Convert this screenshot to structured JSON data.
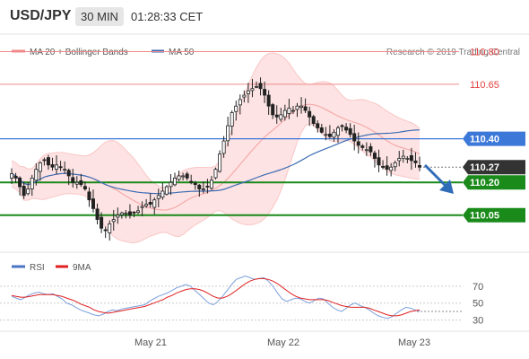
{
  "header": {
    "symbol": "USD/JPY",
    "timeframe": "30 MIN",
    "time": "01:28:33 CET"
  },
  "legend": {
    "bollinger": "MA 20 + Bollinger Bands",
    "ma50": "MA 50",
    "copyright": "Research © 2019 Trading Central"
  },
  "levels": [
    {
      "value": "110.80",
      "kind": "resistance"
    },
    {
      "value": "110.65",
      "kind": "resistance"
    },
    {
      "value": "110.40",
      "kind": "pivot"
    },
    {
      "value": "110.27",
      "kind": "last"
    },
    {
      "value": "110.20",
      "kind": "support"
    },
    {
      "value": "110.05",
      "kind": "support"
    }
  ],
  "rsi_legend": {
    "rsi": "RSI",
    "ma": "9MA"
  },
  "chart_data": {
    "type": "candlestick",
    "price_range": [
      109.88,
      110.88
    ],
    "rsi_range": [
      20,
      90
    ],
    "rsi_ticks": [
      "70",
      "50",
      "30"
    ],
    "x_labels": [
      "May 21",
      "May 22",
      "May 23"
    ],
    "close_series": [
      110.24,
      110.22,
      110.18,
      110.14,
      110.17,
      110.22,
      110.26,
      110.29,
      110.3,
      110.28,
      110.27,
      110.28,
      110.27,
      110.26,
      110.23,
      110.2,
      110.2,
      110.19,
      110.17,
      110.12,
      110.08,
      110.03,
      109.99,
      109.98,
      110.01,
      110.03,
      110.05,
      110.06,
      110.06,
      110.05,
      110.06,
      110.07,
      110.09,
      110.1,
      110.1,
      110.12,
      110.14,
      110.16,
      110.18,
      110.2,
      110.22,
      110.23,
      110.23,
      110.22,
      110.2,
      110.19,
      110.17,
      110.17,
      110.18,
      110.21,
      110.26,
      110.33,
      110.39,
      110.46,
      110.52,
      110.55,
      110.58,
      110.6,
      110.62,
      110.63,
      110.64,
      110.63,
      110.6,
      110.55,
      110.51,
      110.5,
      110.51,
      110.53,
      110.54,
      110.53,
      110.55,
      110.55,
      110.53,
      110.5,
      110.47,
      110.45,
      110.43,
      110.42,
      110.41,
      110.43,
      110.45,
      110.46,
      110.44,
      110.42,
      110.39,
      110.37,
      110.36,
      110.35,
      110.34,
      110.31,
      110.28,
      110.27,
      110.26,
      110.27,
      110.29,
      110.31,
      110.32,
      110.31,
      110.3,
      110.29,
      110.27
    ],
    "rsi_series": [
      58,
      56,
      54,
      57,
      60,
      62,
      63,
      61,
      60,
      61,
      58,
      55,
      50,
      48,
      45,
      42,
      40,
      38,
      36,
      35,
      37,
      40,
      42,
      41,
      43,
      44,
      45,
      46,
      47,
      48,
      52,
      55,
      58,
      60,
      62,
      65,
      68,
      70,
      72,
      70,
      65,
      60,
      55,
      50,
      48,
      52,
      58,
      65,
      72,
      78,
      80,
      82,
      80,
      78,
      79,
      80,
      76,
      70,
      62,
      55,
      52,
      54,
      56,
      55,
      52,
      50,
      53,
      56,
      55,
      50,
      45,
      42,
      40,
      44,
      48,
      50,
      47,
      45,
      42,
      38,
      35,
      33,
      32,
      34,
      38,
      42,
      45,
      44,
      42,
      40
    ],
    "rsi_ma_series": [
      59,
      58,
      57,
      57,
      58,
      59,
      60,
      60,
      60,
      60,
      59,
      58,
      56,
      54,
      52,
      49,
      47,
      45,
      42,
      40,
      39,
      38,
      39,
      40,
      41,
      42,
      43,
      44,
      45,
      46,
      48,
      50,
      52,
      54,
      57,
      59,
      62,
      64,
      66,
      67,
      67,
      66,
      64,
      61,
      58,
      56,
      56,
      58,
      61,
      65,
      69,
      73,
      76,
      78,
      79,
      79,
      78,
      76,
      73,
      69,
      65,
      61,
      58,
      56,
      55,
      54,
      54,
      54,
      54,
      53,
      51,
      49,
      47,
      46,
      45,
      45,
      45,
      45,
      44,
      42,
      40,
      38,
      36,
      35,
      35,
      36,
      38,
      40,
      41,
      42
    ]
  }
}
